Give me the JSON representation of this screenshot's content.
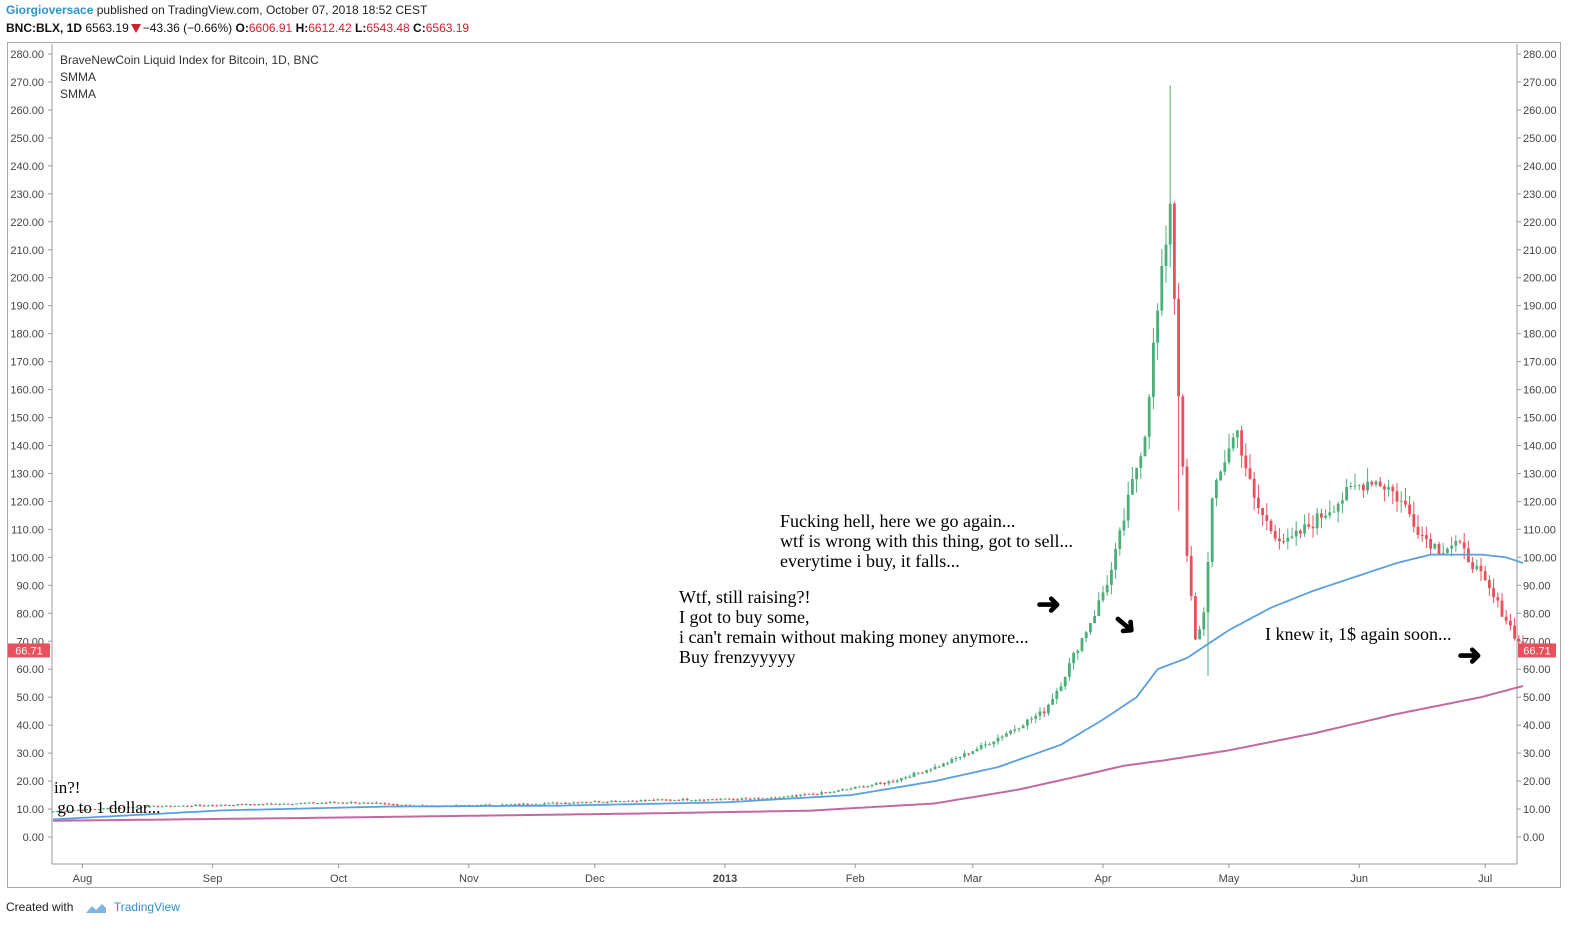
{
  "header": {
    "author": "Giorgioversace",
    "published": "published on TradingView.com, October 07, 2018 18:52 CEST",
    "symbol": "BNC:BLX, 1D",
    "last": "6563.19",
    "change": "−43.36 (−0.66%)",
    "o_label": "O:",
    "o_value": "6606.91",
    "h_label": "H:",
    "h_value": "6612.42",
    "l_label": "L:",
    "l_value": "6543.48",
    "c_label": "C:",
    "c_value": "6563.19"
  },
  "legend": {
    "title": "BraveNewCoin Liquid Index for Bitcoin, 1D, BNC",
    "ma1": "SMMA",
    "ma2": "SMMA"
  },
  "annotations": {
    "left": "in?!\n go to 1 dollar...",
    "frenzy": "Wtf, still raising?!\nI got to buy some,\ni can't remain without making money anymore...\nBuy frenzyyyyy",
    "hell": "Fucking hell, here we go again...\nwtf is wrong with this thing, got to sell...\neverytime i buy, it falls...",
    "knew": "I knew it, 1$ again soon..."
  },
  "footer": {
    "created": "Created with",
    "brand": "TradingView"
  },
  "chart_data": {
    "type": "candlestick",
    "title": "BraveNewCoin Liquid Index for Bitcoin, 1D, BNC",
    "xlabel": "",
    "ylabel": "",
    "ylim": [
      0,
      280
    ],
    "y_ticks": [
      "0.00",
      "10.00",
      "20.00",
      "30.00",
      "40.00",
      "50.00",
      "60.00",
      "70.00",
      "80.00",
      "90.00",
      "100.00",
      "110.00",
      "120.00",
      "130.00",
      "140.00",
      "150.00",
      "160.00",
      "170.00",
      "180.00",
      "190.00",
      "200.00",
      "210.00",
      "220.00",
      "230.00",
      "240.00",
      "250.00",
      "260.00",
      "270.00",
      "280.00"
    ],
    "x_ticks": [
      "Aug",
      "Sep",
      "Oct",
      "Nov",
      "Dec",
      "2013",
      "Feb",
      "Mar",
      "Apr",
      "May",
      "Jun",
      "Jul"
    ],
    "x_tick_day": [
      7,
      38,
      68,
      99,
      129,
      160,
      191,
      219,
      250,
      280,
      311,
      341
    ],
    "current_price_label": "66.71",
    "current_price": 66.71,
    "colors": {
      "up": "#4caf7a",
      "down": "#e8505b",
      "smma_fast": "#5a9fe0",
      "smma_slow": "#c26aa0"
    },
    "close_keypoints": [
      [
        0,
        9.2
      ],
      [
        20,
        10.8
      ],
      [
        40,
        11.4
      ],
      [
        60,
        12.1
      ],
      [
        70,
        12.4
      ],
      [
        90,
        11.0
      ],
      [
        110,
        11.6
      ],
      [
        130,
        12.7
      ],
      [
        150,
        13.4
      ],
      [
        170,
        13.6
      ],
      [
        185,
        16
      ],
      [
        200,
        20
      ],
      [
        212,
        26
      ],
      [
        222,
        33
      ],
      [
        228,
        38
      ],
      [
        236,
        45
      ],
      [
        240,
        55
      ],
      [
        244,
        68
      ],
      [
        248,
        80
      ],
      [
        252,
        95
      ],
      [
        256,
        120
      ],
      [
        260,
        145
      ],
      [
        262,
        175
      ],
      [
        264,
        200
      ],
      [
        266,
        228
      ],
      [
        268,
        160
      ],
      [
        270,
        100
      ],
      [
        272,
        70
      ],
      [
        274,
        80
      ],
      [
        276,
        120
      ],
      [
        280,
        140
      ],
      [
        282,
        145
      ],
      [
        286,
        120
      ],
      [
        290,
        110
      ],
      [
        294,
        105
      ],
      [
        298,
        110
      ],
      [
        302,
        115
      ],
      [
        306,
        120
      ],
      [
        310,
        125
      ],
      [
        314,
        128
      ],
      [
        318,
        125
      ],
      [
        322,
        118
      ],
      [
        326,
        108
      ],
      [
        330,
        103
      ],
      [
        334,
        105
      ],
      [
        338,
        98
      ],
      [
        342,
        88
      ],
      [
        346,
        78
      ],
      [
        350,
        66.71
      ]
    ],
    "smma_fast_keypoints": [
      [
        0,
        6.3
      ],
      [
        40,
        9.5
      ],
      [
        80,
        10.9
      ],
      [
        120,
        11.2
      ],
      [
        160,
        12.4
      ],
      [
        190,
        15
      ],
      [
        210,
        20
      ],
      [
        225,
        25
      ],
      [
        240,
        33
      ],
      [
        250,
        42
      ],
      [
        258,
        50
      ],
      [
        263,
        60
      ],
      [
        270,
        64
      ],
      [
        280,
        74
      ],
      [
        290,
        82
      ],
      [
        300,
        88
      ],
      [
        310,
        93
      ],
      [
        320,
        98
      ],
      [
        328,
        101
      ],
      [
        340,
        101
      ],
      [
        346,
        100
      ],
      [
        350,
        98
      ]
    ],
    "smma_slow_keypoints": [
      [
        0,
        5.8
      ],
      [
        60,
        6.8
      ],
      [
        100,
        7.6
      ],
      [
        140,
        8.4
      ],
      [
        180,
        9.4
      ],
      [
        210,
        12
      ],
      [
        230,
        17
      ],
      [
        245,
        22
      ],
      [
        255,
        25.5
      ],
      [
        265,
        27.5
      ],
      [
        280,
        31
      ],
      [
        300,
        37
      ],
      [
        320,
        44
      ],
      [
        340,
        50
      ],
      [
        350,
        54
      ]
    ]
  }
}
